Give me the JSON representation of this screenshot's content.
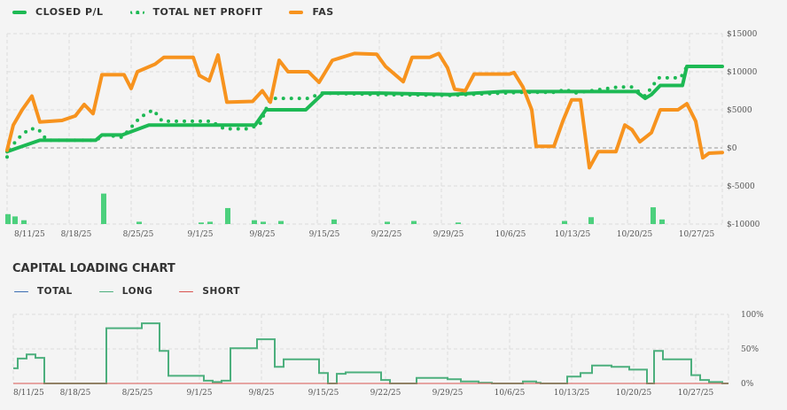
{
  "top_chart": {
    "legend": [
      {
        "label": "CLOSED P/L",
        "color": "#1db954",
        "style": "solid"
      },
      {
        "label": "TOTAL NET PROFIT",
        "color": "#1db954",
        "style": "dotted"
      },
      {
        "label": "FAS",
        "color": "#f7931e",
        "style": "solid"
      }
    ]
  },
  "bottom_chart": {
    "title": "CAPITAL LOADING CHART",
    "legend": [
      {
        "label": "TOTAL",
        "color": "#3b6db3"
      },
      {
        "label": "LONG",
        "color": "#4caf7d"
      },
      {
        "label": "SHORT",
        "color": "#d9534f"
      }
    ]
  },
  "chart_data": [
    {
      "type": "line",
      "title": "",
      "x_unit": "days since 8/11/25",
      "x_ticks": [
        {
          "d": 0,
          "label": "8/11/25"
        },
        {
          "d": 7,
          "label": "8/18/25"
        },
        {
          "d": 14,
          "label": "8/25/25"
        },
        {
          "d": 21,
          "label": "9/1/25"
        },
        {
          "d": 28,
          "label": "9/8/25"
        },
        {
          "d": 35,
          "label": "9/15/25"
        },
        {
          "d": 42,
          "label": "9/22/25"
        },
        {
          "d": 49,
          "label": "9/29/25"
        },
        {
          "d": 56,
          "label": "10/6/25"
        },
        {
          "d": 63,
          "label": "10/13/25"
        },
        {
          "d": 70,
          "label": "10/20/25"
        },
        {
          "d": 77,
          "label": "10/27/25"
        }
      ],
      "y_ticks": [
        {
          "v": 15000,
          "label": "$15000"
        },
        {
          "v": 10000,
          "label": "$10000"
        },
        {
          "v": 5000,
          "label": "$5000"
        },
        {
          "v": 0,
          "label": "$0"
        },
        {
          "v": -5000,
          "label": "$-5000"
        },
        {
          "v": -10000,
          "label": "$-10000"
        }
      ],
      "ylim": [
        -10000,
        15000
      ],
      "xlim": [
        0,
        80.7
      ],
      "series": [
        {
          "name": "CLOSED P/L",
          "points": [
            [
              0,
              -500
            ],
            [
              1.2,
              0
            ],
            [
              3.7,
              1000
            ],
            [
              10,
              1000
            ],
            [
              10.7,
              1700
            ],
            [
              13,
              1700
            ],
            [
              16,
              3000
            ],
            [
              28,
              3000
            ],
            [
              29.2,
              5000
            ],
            [
              33.7,
              5000
            ],
            [
              35.7,
              7200
            ],
            [
              42,
              7200
            ],
            [
              50,
              7000
            ],
            [
              56,
              7400
            ],
            [
              71,
              7400
            ],
            [
              72,
              6500
            ],
            [
              72.7,
              7000
            ],
            [
              73.7,
              8200
            ],
            [
              76.2,
              8200
            ],
            [
              76.7,
              10700
            ],
            [
              80.7,
              10700
            ]
          ]
        },
        {
          "name": "TOTAL NET PROFIT",
          "points": [
            [
              0,
              -1200
            ],
            [
              1,
              1000
            ],
            [
              2.5,
              2500
            ],
            [
              3.5,
              2500
            ],
            [
              4.5,
              1000
            ],
            [
              10,
              1000
            ],
            [
              11,
              1700
            ],
            [
              13,
              1400
            ],
            [
              15,
              4000
            ],
            [
              16.5,
              5000
            ],
            [
              17.5,
              3500
            ],
            [
              23,
              3500
            ],
            [
              24.5,
              2500
            ],
            [
              27,
              2500
            ],
            [
              28.5,
              3000
            ],
            [
              29.7,
              6500
            ],
            [
              34,
              6500
            ],
            [
              35.5,
              7200
            ],
            [
              42,
              7000
            ],
            [
              50,
              6900
            ],
            [
              58,
              7300
            ],
            [
              62,
              7300
            ],
            [
              63,
              7700
            ],
            [
              64,
              7200
            ],
            [
              69,
              8000
            ],
            [
              70.5,
              8000
            ],
            [
              72,
              6800
            ],
            [
              73.5,
              9200
            ],
            [
              76,
              9200
            ],
            [
              76.7,
              10700
            ],
            [
              80.7,
              10700
            ]
          ]
        },
        {
          "name": "FAS",
          "points": [
            [
              0,
              -300
            ],
            [
              0.7,
              3000
            ],
            [
              1.7,
              5000
            ],
            [
              2.8,
              6800
            ],
            [
              3.7,
              3400
            ],
            [
              6.2,
              3600
            ],
            [
              7.7,
              4200
            ],
            [
              8.7,
              5700
            ],
            [
              9.7,
              4500
            ],
            [
              10.7,
              9600
            ],
            [
              13.2,
              9600
            ],
            [
              14,
              7800
            ],
            [
              14.7,
              10000
            ],
            [
              16.7,
              11000
            ],
            [
              17.7,
              11900
            ],
            [
              21,
              11900
            ],
            [
              21.7,
              9500
            ],
            [
              22.8,
              8800
            ],
            [
              23.8,
              12200
            ],
            [
              24.8,
              6000
            ],
            [
              27.7,
              6100
            ],
            [
              28.8,
              7500
            ],
            [
              29.7,
              6000
            ],
            [
              30.7,
              11500
            ],
            [
              31.7,
              10000
            ],
            [
              34,
              10000
            ],
            [
              35.2,
              8600
            ],
            [
              36.7,
              11500
            ],
            [
              39.2,
              12400
            ],
            [
              41.7,
              12300
            ],
            [
              42.7,
              10700
            ],
            [
              44.7,
              8700
            ],
            [
              45.7,
              11900
            ],
            [
              47.7,
              11900
            ],
            [
              48.7,
              12400
            ],
            [
              49.7,
              10500
            ],
            [
              50.5,
              7700
            ],
            [
              51.7,
              7500
            ],
            [
              52.7,
              9700
            ],
            [
              56.7,
              9700
            ],
            [
              57.2,
              9900
            ],
            [
              58.2,
              8000
            ],
            [
              59.2,
              5000
            ],
            [
              59.7,
              200
            ],
            [
              61.7,
              200
            ],
            [
              62.7,
              3500
            ],
            [
              63.7,
              6300
            ],
            [
              64.7,
              6300
            ],
            [
              65.7,
              -2600
            ],
            [
              66.7,
              -500
            ],
            [
              68.7,
              -500
            ],
            [
              69.7,
              3000
            ],
            [
              70.5,
              2400
            ],
            [
              71.4,
              800
            ],
            [
              72.7,
              2000
            ],
            [
              73.7,
              5000
            ],
            [
              75.7,
              5000
            ],
            [
              76.7,
              5800
            ],
            [
              77.7,
              3500
            ],
            [
              78.5,
              -1300
            ],
            [
              79.2,
              -700
            ],
            [
              80.7,
              -600
            ]
          ]
        }
      ],
      "bars": [
        [
          0.1,
          -8700
        ],
        [
          0.9,
          -9000
        ],
        [
          1.9,
          -9500
        ],
        [
          10.9,
          -6000
        ],
        [
          14.9,
          -9700
        ],
        [
          21.9,
          -9800
        ],
        [
          22.9,
          -9700
        ],
        [
          24.9,
          -7900
        ],
        [
          27.9,
          -9500
        ],
        [
          28.9,
          -9700
        ],
        [
          30.9,
          -9600
        ],
        [
          36.9,
          -9400
        ],
        [
          42.9,
          -9700
        ],
        [
          45.9,
          -9600
        ],
        [
          50.9,
          -9800
        ],
        [
          62.9,
          -9600
        ],
        [
          65.9,
          -9100
        ],
        [
          72.9,
          -7800
        ],
        [
          73.9,
          -9400
        ]
      ]
    },
    {
      "type": "line",
      "title": "CAPITAL LOADING CHART",
      "step": true,
      "x_unit": "days since 8/11/25",
      "x_ticks": [
        {
          "d": 0,
          "label": "8/11/25"
        },
        {
          "d": 7,
          "label": "8/18/25"
        },
        {
          "d": 14,
          "label": "8/25/25"
        },
        {
          "d": 21,
          "label": "9/1/25"
        },
        {
          "d": 28,
          "label": "9/8/25"
        },
        {
          "d": 35,
          "label": "9/15/25"
        },
        {
          "d": 42,
          "label": "9/22/25"
        },
        {
          "d": 49,
          "label": "9/29/25"
        },
        {
          "d": 56,
          "label": "10/6/25"
        },
        {
          "d": 63,
          "label": "10/13/25"
        },
        {
          "d": 70,
          "label": "10/20/25"
        },
        {
          "d": 77,
          "label": "10/27/25"
        }
      ],
      "y_ticks": [
        {
          "v": 100,
          "label": "100%"
        },
        {
          "v": 50,
          "label": "50%"
        },
        {
          "v": 0,
          "label": "0%"
        }
      ],
      "ylim": [
        0,
        100
      ],
      "xlim": [
        0,
        80.7
      ],
      "series": [
        {
          "name": "LONG",
          "steps": [
            [
              0,
              22
            ],
            [
              0.5,
              36
            ],
            [
              1.5,
              42
            ],
            [
              2.5,
              37
            ],
            [
              3.5,
              0
            ],
            [
              10.5,
              80
            ],
            [
              14.5,
              87
            ],
            [
              16.5,
              47
            ],
            [
              17.5,
              11
            ],
            [
              21.5,
              4
            ],
            [
              22.5,
              2
            ],
            [
              23.5,
              4
            ],
            [
              24.5,
              51
            ],
            [
              27.5,
              64
            ],
            [
              29.5,
              24
            ],
            [
              30.5,
              35
            ],
            [
              34.5,
              15
            ],
            [
              35.5,
              0
            ],
            [
              36.5,
              14
            ],
            [
              37.5,
              16
            ],
            [
              41.5,
              5
            ],
            [
              42.5,
              0
            ],
            [
              45.5,
              8
            ],
            [
              49,
              6
            ],
            [
              50.5,
              3
            ],
            [
              52.5,
              1
            ],
            [
              54,
              0
            ],
            [
              57.5,
              3
            ],
            [
              59,
              1
            ],
            [
              59.5,
              0
            ],
            [
              62.5,
              10
            ],
            [
              64,
              15
            ],
            [
              65.3,
              26
            ],
            [
              67.5,
              24
            ],
            [
              69.5,
              20
            ],
            [
              71.5,
              0
            ],
            [
              72.3,
              47
            ],
            [
              73.3,
              35
            ],
            [
              76.5,
              12
            ],
            [
              77.5,
              5
            ],
            [
              78.5,
              2
            ],
            [
              80,
              0
            ],
            [
              80.7,
              0
            ]
          ]
        },
        {
          "name": "SHORT",
          "steps": [
            [
              0,
              0
            ],
            [
              80.7,
              0
            ]
          ]
        },
        {
          "name": "TOTAL",
          "steps": []
        }
      ]
    }
  ]
}
